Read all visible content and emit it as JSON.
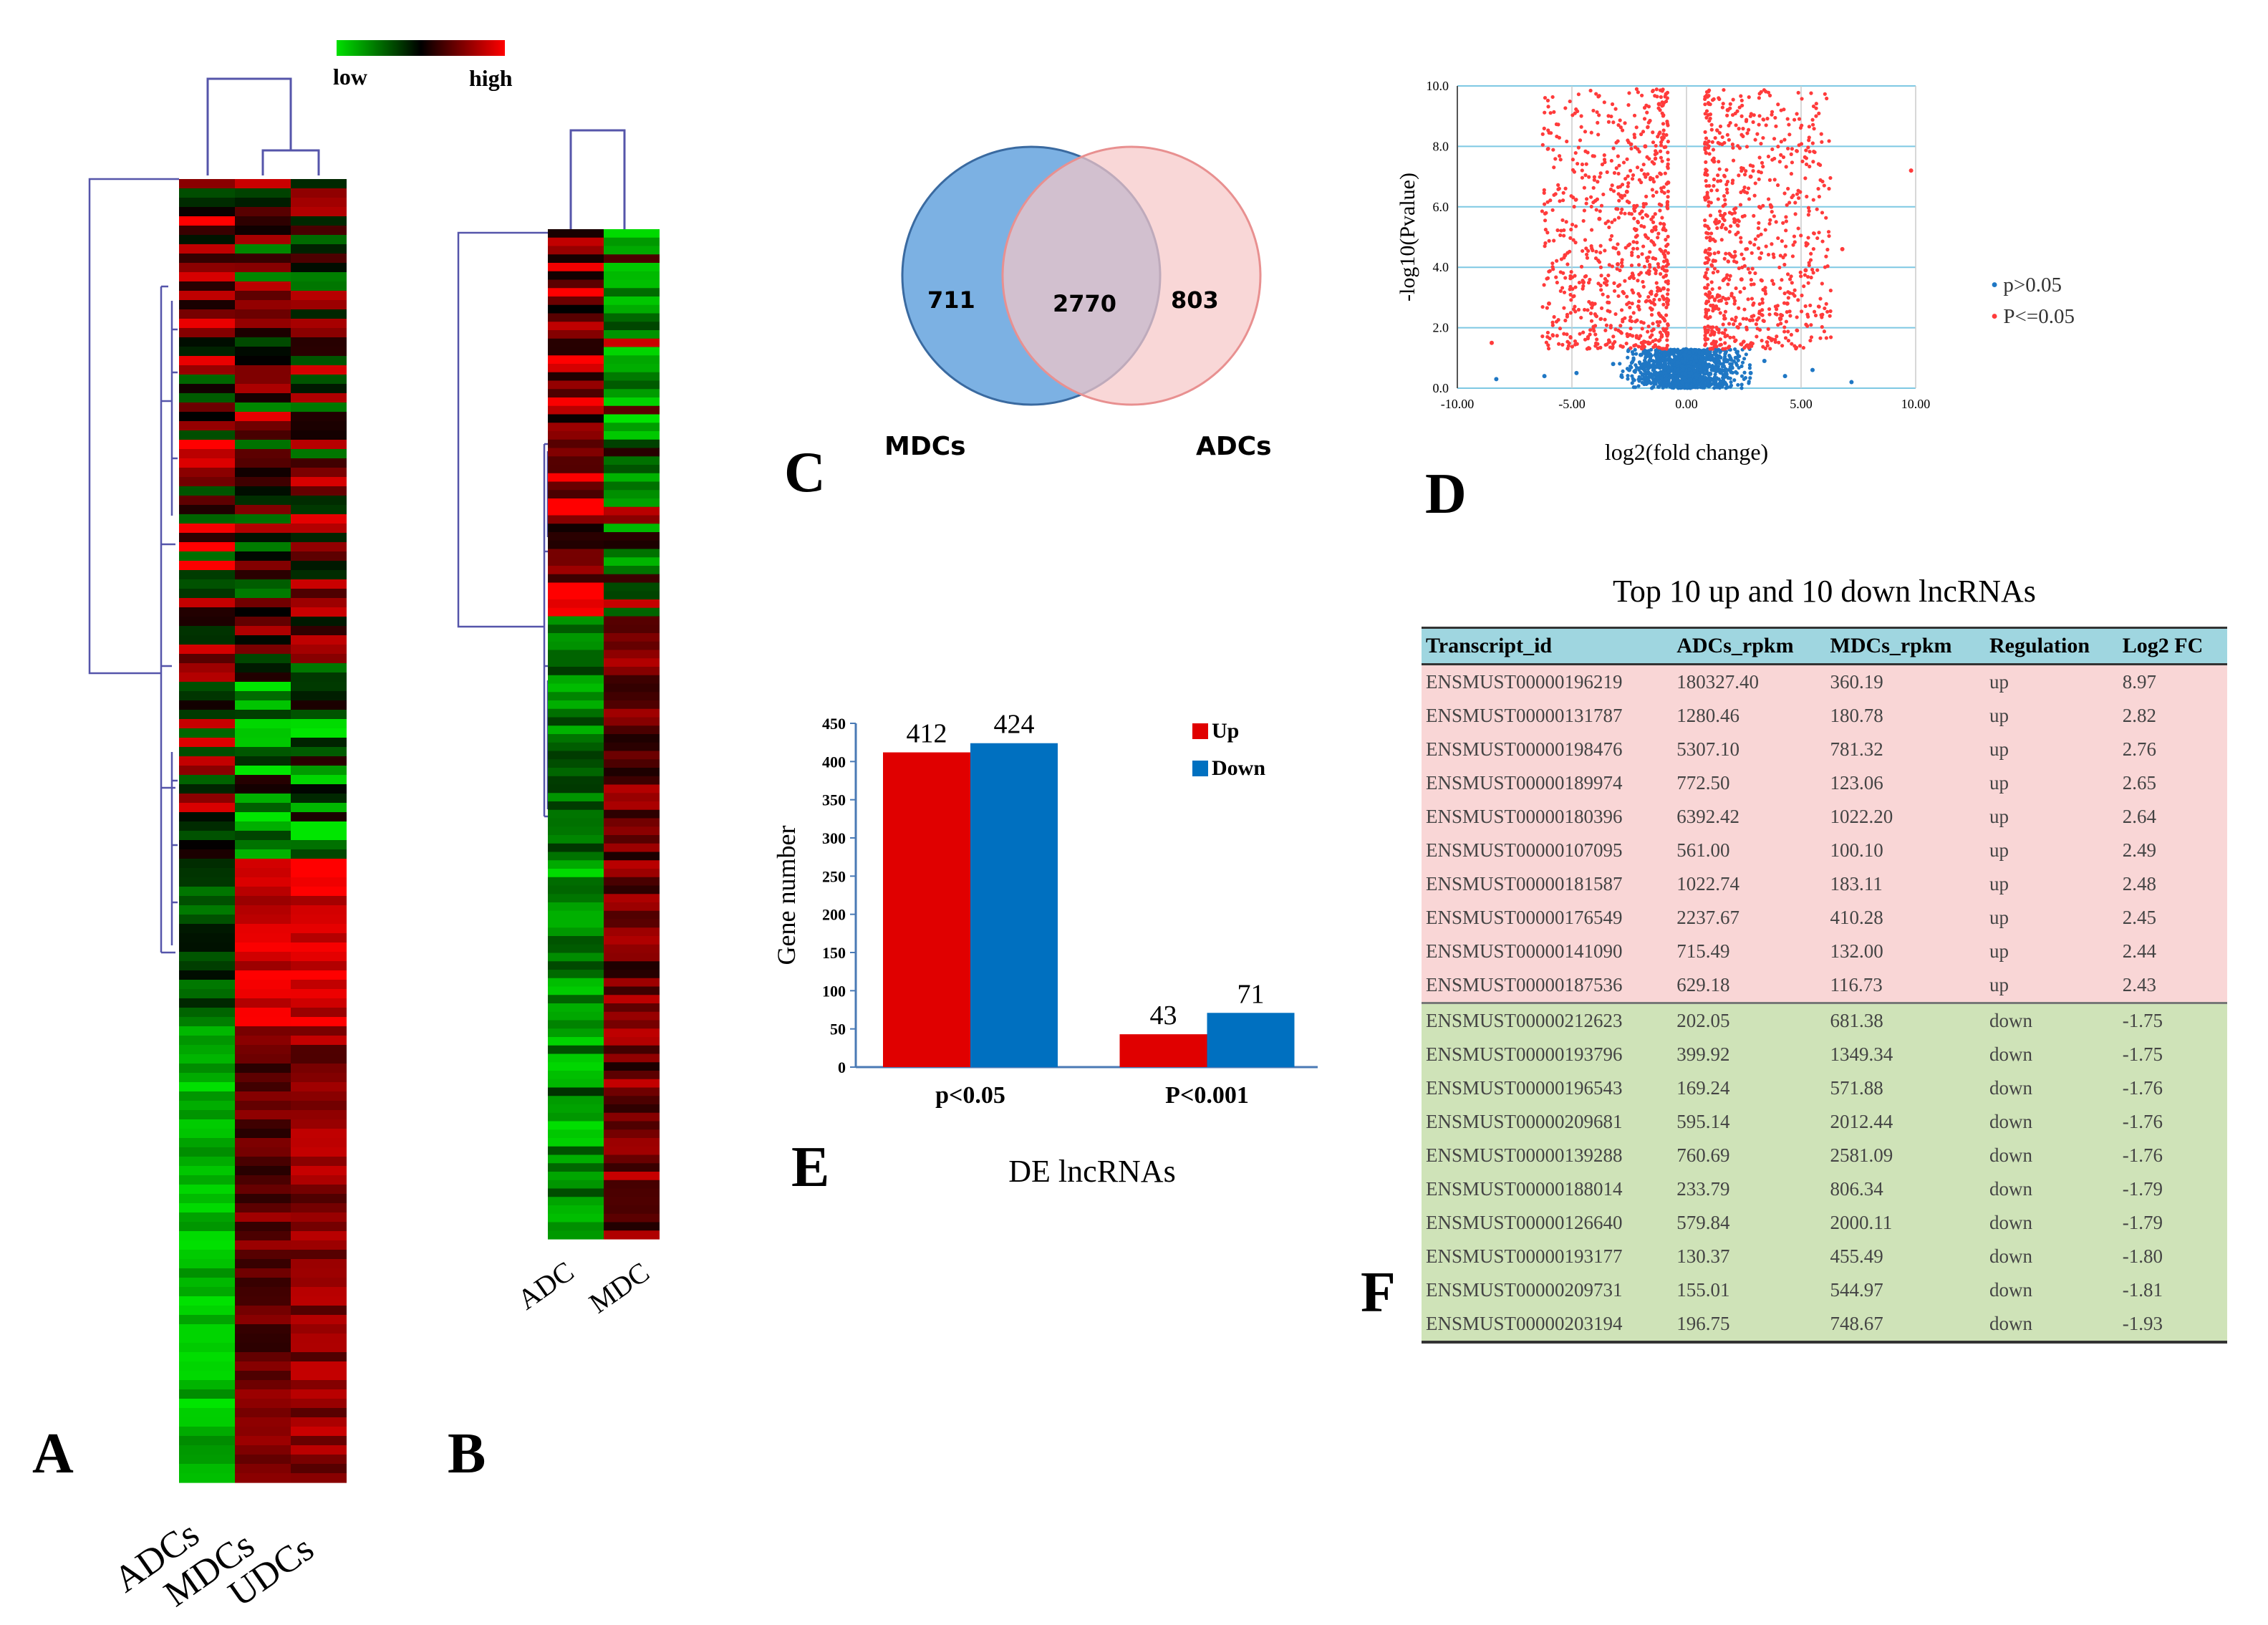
{
  "panel_a": {
    "letter": "A",
    "legend_low": "low",
    "legend_high": "high",
    "columns": [
      "ADCs",
      "MDCs",
      "UDCs"
    ]
  },
  "panel_b": {
    "letter": "B",
    "columns": [
      "ADC",
      "MDC"
    ]
  },
  "panel_c": {
    "letter": "C",
    "left_label": "MDCs",
    "right_label": "ADCs",
    "left_only": "711",
    "overlap": "2770",
    "right_only": "803",
    "colors": {
      "left": "#6ea8e0",
      "right": "#f6c6c6"
    }
  },
  "panel_d": {
    "letter": "D",
    "legend": [
      "p>0.05",
      "P<=0.05"
    ],
    "colors": {
      "nonsig": "#1f77c4",
      "sig": "#ff3b3b"
    }
  },
  "panel_e": {
    "letter": "E"
  },
  "panel_f": {
    "letter": "F",
    "title": "Top 10 up and 10 down lncRNAs",
    "headers": [
      "Transcript_id",
      "ADCs_rpkm",
      "MDCs_rpkm",
      "Regulation",
      "Log2 FC"
    ],
    "rows": [
      [
        "ENSMUST00000196219",
        "180327.40",
        "360.19",
        "up",
        "8.97"
      ],
      [
        "ENSMUST00000131787",
        "1280.46",
        "180.78",
        "up",
        "2.82"
      ],
      [
        "ENSMUST00000198476",
        "5307.10",
        "781.32",
        "up",
        "2.76"
      ],
      [
        "ENSMUST00000189974",
        "772.50",
        "123.06",
        "up",
        "2.65"
      ],
      [
        "ENSMUST00000180396",
        "6392.42",
        "1022.20",
        "up",
        "2.64"
      ],
      [
        "ENSMUST00000107095",
        "561.00",
        "100.10",
        "up",
        "2.49"
      ],
      [
        "ENSMUST00000181587",
        "1022.74",
        "183.11",
        "up",
        "2.48"
      ],
      [
        "ENSMUST00000176549",
        "2237.67",
        "410.28",
        "up",
        "2.45"
      ],
      [
        "ENSMUST00000141090",
        "715.49",
        "132.00",
        "up",
        "2.44"
      ],
      [
        "ENSMUST00000187536",
        "629.18",
        "116.73",
        "up",
        "2.43"
      ],
      [
        "ENSMUST00000212623",
        "202.05",
        "681.38",
        "down",
        "-1.75"
      ],
      [
        "ENSMUST00000193796",
        "399.92",
        "1349.34",
        "down",
        "-1.75"
      ],
      [
        "ENSMUST00000196543",
        "169.24",
        "571.88",
        "down",
        "-1.76"
      ],
      [
        "ENSMUST00000209681",
        "595.14",
        "2012.44",
        "down",
        "-1.76"
      ],
      [
        "ENSMUST00000139288",
        "760.69",
        "2581.09",
        "down",
        "-1.76"
      ],
      [
        "ENSMUST00000188014",
        "233.79",
        "806.34",
        "down",
        "-1.79"
      ],
      [
        "ENSMUST00000126640",
        "579.84",
        "2000.11",
        "down",
        "-1.79"
      ],
      [
        "ENSMUST00000193177",
        "130.37",
        "455.49",
        "down",
        "-1.80"
      ],
      [
        "ENSMUST00000209731",
        "155.01",
        "544.97",
        "down",
        "-1.81"
      ],
      [
        "ENSMUST00000203194",
        "196.75",
        "748.67",
        "down",
        "-1.93"
      ]
    ]
  },
  "chart_data": [
    {
      "type": "scatter",
      "title": "",
      "xlabel": "log2(fold change)",
      "ylabel": "-log10(Pvalue)",
      "xlim": [
        -10,
        10
      ],
      "ylim": [
        0,
        10
      ],
      "xticks": [
        "-10.00",
        "-5.00",
        "0.00",
        "5.00",
        "10.00"
      ],
      "yticks": [
        "0.0",
        "2.0",
        "4.0",
        "6.0",
        "8.0",
        "10.0"
      ],
      "series": [
        {
          "name": "p>0.05",
          "points": [
            [
              -8.3,
              0.3
            ],
            [
              -6.2,
              0.4
            ],
            [
              -4.8,
              0.5
            ],
            [
              -3.2,
              0.8
            ],
            [
              -2.5,
              0.6
            ],
            [
              -2.0,
              1.1
            ],
            [
              -1.6,
              0.4
            ],
            [
              -1.2,
              0.9
            ],
            [
              -0.9,
              0.3
            ],
            [
              -0.6,
              1.2
            ],
            [
              -0.4,
              0.6
            ],
            [
              -0.2,
              0.2
            ],
            [
              0.0,
              0.1
            ],
            [
              0.2,
              0.5
            ],
            [
              0.4,
              1.0
            ],
            [
              0.6,
              0.3
            ],
            [
              0.9,
              1.2
            ],
            [
              1.3,
              0.7
            ],
            [
              1.7,
              0.4
            ],
            [
              2.2,
              1.0
            ],
            [
              2.8,
              0.5
            ],
            [
              3.4,
              0.9
            ],
            [
              4.3,
              0.4
            ],
            [
              5.5,
              0.6
            ],
            [
              7.2,
              0.2
            ]
          ]
        },
        {
          "name": "P<=0.05",
          "points": [
            [
              -8.5,
              1.5
            ],
            [
              -6.0,
              2.8
            ],
            [
              -5.3,
              4.4
            ],
            [
              -4.5,
              3.5
            ],
            [
              -3.8,
              5.6
            ],
            [
              -3.0,
              4.1
            ],
            [
              -2.6,
              6.5
            ],
            [
              -2.1,
              2.7
            ],
            [
              -1.8,
              8.0
            ],
            [
              -1.5,
              5.2
            ],
            [
              -1.2,
              9.4
            ],
            [
              -1.0,
              3.3
            ],
            [
              -0.8,
              6.8
            ],
            [
              1.0,
              4.6
            ],
            [
              1.2,
              7.5
            ],
            [
              1.5,
              2.9
            ],
            [
              1.8,
              9.2
            ],
            [
              2.1,
              5.5
            ],
            [
              2.4,
              3.6
            ],
            [
              2.8,
              7.0
            ],
            [
              3.2,
              4.3
            ],
            [
              3.7,
              6.0
            ],
            [
              4.4,
              2.8
            ],
            [
              5.2,
              3.9
            ],
            [
              6.8,
              4.6
            ],
            [
              9.8,
              7.2
            ]
          ]
        }
      ]
    },
    {
      "type": "bar",
      "title": "",
      "xlabel": "DE lncRNAs",
      "ylabel": "Gene number",
      "ylim": [
        0,
        450
      ],
      "yticks": [
        "0",
        "50",
        "100",
        "150",
        "200",
        "250",
        "300",
        "350",
        "400",
        "450"
      ],
      "categories": [
        "p<0.05",
        "P<0.001"
      ],
      "series": [
        {
          "name": "Up",
          "values": [
            412,
            43
          ],
          "labels": [
            "412",
            "43"
          ],
          "color": "#e00000"
        },
        {
          "name": "Down",
          "values": [
            424,
            71
          ],
          "labels": [
            "424",
            "71"
          ],
          "color": "#0070c0"
        }
      ],
      "legend": "top-right"
    }
  ]
}
